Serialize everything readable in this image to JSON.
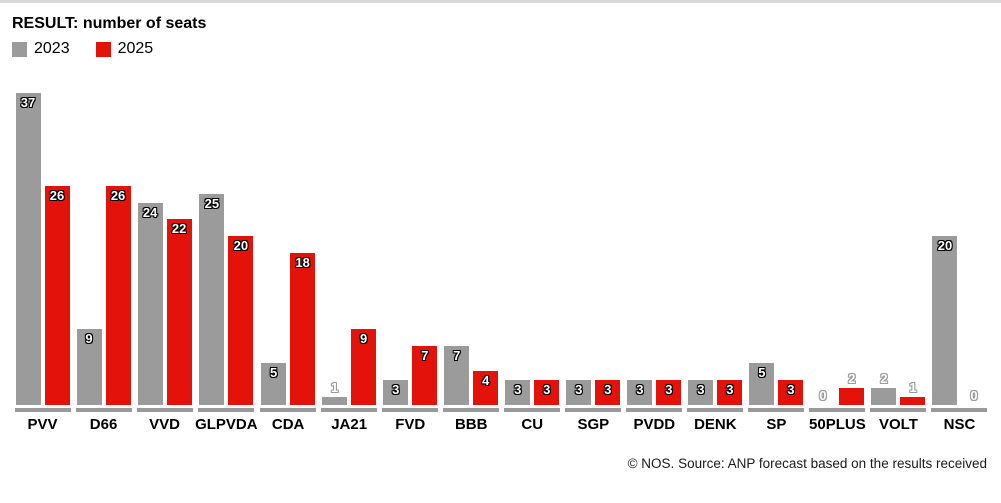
{
  "page": {
    "background": "#ffffff",
    "top_border_color": "#d9d9d9"
  },
  "header": {
    "title": "RESULT: number of seats"
  },
  "legend": [
    {
      "label": "2023",
      "color": "#9b9b9b"
    },
    {
      "label": "2025",
      "color": "#e3120b"
    }
  ],
  "chart_data": {
    "type": "bar",
    "title": "RESULT: number of seats",
    "categories": [
      "PVV",
      "D66",
      "VVD",
      "GLPVDA",
      "CDA",
      "JA21",
      "FVD",
      "BBB",
      "CU",
      "SGP",
      "PVDD",
      "DENK",
      "SP",
      "50PLUS",
      "VOLT",
      "NSC"
    ],
    "series": [
      {
        "name": "2023",
        "color": "#9b9b9b",
        "values": [
          37,
          9,
          24,
          25,
          5,
          1,
          3,
          7,
          3,
          3,
          3,
          3,
          5,
          0,
          2,
          20
        ]
      },
      {
        "name": "2025",
        "color": "#e3120b",
        "values": [
          26,
          26,
          22,
          20,
          18,
          9,
          7,
          4,
          3,
          3,
          3,
          3,
          3,
          2,
          1,
          0
        ]
      }
    ],
    "ylim": [
      0,
      37
    ],
    "grid": false,
    "value_labels": true,
    "legend_position": "top-left",
    "xlabel": "",
    "ylabel": ""
  },
  "footer": {
    "credit": "© NOS. Source: ANP forecast based on the results received"
  }
}
